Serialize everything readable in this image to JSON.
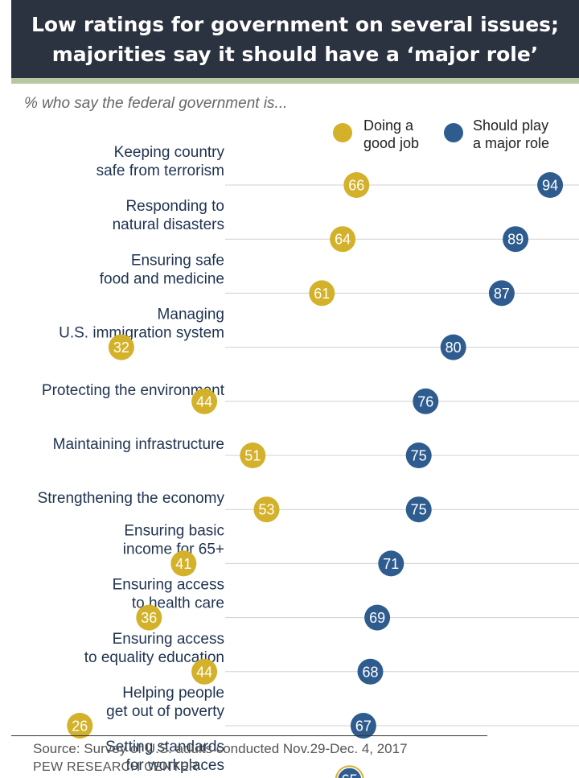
{
  "header": {
    "title_lines": [
      "Low ratings for government on several issues;",
      "majorities say it should have a ‘major role’"
    ],
    "subtitle": "% who say the federal government is..."
  },
  "legend": [
    {
      "lines": [
        "Doing a",
        "good job"
      ],
      "color": "#d4b12a"
    },
    {
      "lines": [
        "Should play",
        "a major role"
      ],
      "color": "#2f5c8f"
    }
  ],
  "chart_data": {
    "type": "scatter",
    "title": "Low ratings for government on several issues; majorities say it should have a ‘major role’",
    "subtitle": "% who say the federal government is...",
    "series": [
      {
        "name": "Doing a good job",
        "color": "#d4b12a",
        "values": [
          66,
          64,
          61,
          32,
          44,
          51,
          53,
          41,
          36,
          44,
          26,
          65
        ]
      },
      {
        "name": "Should play a major role",
        "color": "#2f5c8f",
        "values": [
          94,
          89,
          87,
          80,
          76,
          75,
          75,
          71,
          69,
          68,
          67,
          65
        ]
      }
    ],
    "categories": [
      [
        "Keeping country",
        "safe from terrorism"
      ],
      [
        "Responding to",
        "natural disasters"
      ],
      [
        "Ensuring safe",
        "food and medicine"
      ],
      [
        "Managing",
        "U.S. immigration system"
      ],
      [
        "Protecting the environment"
      ],
      [
        "Maintaining infrastructure"
      ],
      [
        "Strengthening the economy"
      ],
      [
        "Ensuring basic",
        "income for 65+"
      ],
      [
        "Ensuring access",
        "to health care"
      ],
      [
        "Ensuring access",
        "to equality education"
      ],
      [
        "Helping people",
        "get out of poverty"
      ],
      [
        "Setting standards",
        "for workplaces"
      ]
    ]
  },
  "footer": {
    "source": "Source: Survey of U.S. adults conducted Nov.29-Dec. 4, 2017",
    "org": "PEW RESEARCH CENTER"
  }
}
